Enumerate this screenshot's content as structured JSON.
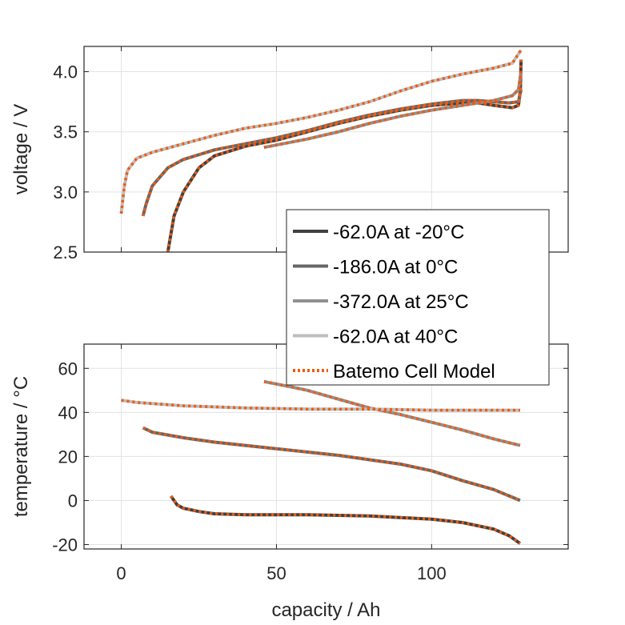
{
  "chart_data": [
    {
      "type": "line",
      "ylabel": "voltage / V",
      "xlabel": "",
      "xlim": [
        -12,
        144
      ],
      "ylim": [
        2.5,
        4.21
      ],
      "yticks": [
        2.5,
        3.0,
        3.5,
        4.0
      ],
      "ytick_labels": [
        "2.5",
        "3.0",
        "3.5",
        "4.0"
      ],
      "grid": true,
      "series": [
        {
          "name": "-62.0A at -20°C",
          "color": "#404040",
          "x": [
            15,
            17,
            20,
            25,
            30,
            40,
            50,
            60,
            70,
            80,
            90,
            100,
            110,
            115,
            120,
            126,
            128,
            128.6,
            128.8
          ],
          "y": [
            2.5,
            2.8,
            3.0,
            3.2,
            3.3,
            3.38,
            3.43,
            3.5,
            3.57,
            3.63,
            3.68,
            3.72,
            3.74,
            3.74,
            3.72,
            3.7,
            3.72,
            3.85,
            4.1
          ]
        },
        {
          "name": "-186.0A at 0°C",
          "color": "#666666",
          "x": [
            7,
            8,
            10,
            15,
            20,
            30,
            40,
            50,
            60,
            70,
            80,
            90,
            100,
            110,
            115,
            120,
            125,
            128,
            128.8
          ],
          "y": [
            2.8,
            2.9,
            3.05,
            3.2,
            3.27,
            3.35,
            3.4,
            3.45,
            3.51,
            3.58,
            3.64,
            3.69,
            3.73,
            3.76,
            3.76,
            3.75,
            3.74,
            3.75,
            3.85
          ]
        },
        {
          "name": "-372.0A at 25°C",
          "color": "#909090",
          "x": [
            46,
            60,
            70,
            80,
            90,
            100,
            110,
            120,
            126,
            128,
            128.8
          ],
          "y": [
            3.37,
            3.44,
            3.5,
            3.57,
            3.63,
            3.68,
            3.72,
            3.76,
            3.8,
            3.85,
            4.0
          ]
        },
        {
          "name": "-62.0A at 40°C",
          "color": "#bdbdbd",
          "x": [
            0,
            1,
            2,
            5,
            10,
            20,
            30,
            40,
            50,
            60,
            70,
            80,
            90,
            100,
            110,
            120,
            126,
            128.8
          ],
          "y": [
            2.82,
            3.05,
            3.18,
            3.28,
            3.33,
            3.4,
            3.47,
            3.53,
            3.57,
            3.62,
            3.68,
            3.75,
            3.84,
            3.92,
            3.98,
            4.03,
            4.07,
            4.18
          ]
        }
      ]
    },
    {
      "type": "line",
      "ylabel": "temperature / °C",
      "xlabel": "capacity / Ah",
      "xlim": [
        -12,
        144
      ],
      "ylim": [
        -22,
        71
      ],
      "xticks": [
        0,
        50,
        100
      ],
      "xtick_labels": [
        "0",
        "50",
        "100"
      ],
      "yticks": [
        -20,
        0,
        20,
        40,
        60
      ],
      "ytick_labels": [
        "-20",
        "0",
        "20",
        "40",
        "60"
      ],
      "grid": true,
      "series": [
        {
          "name": "-62.0A at -20°C",
          "color": "#404040",
          "x": [
            16,
            18,
            20,
            25,
            30,
            40,
            60,
            80,
            100,
            110,
            120,
            125,
            128.5
          ],
          "y": [
            2,
            -2,
            -3.5,
            -5,
            -6,
            -6.5,
            -6.5,
            -7,
            -8.5,
            -10,
            -13,
            -16,
            -19.5
          ]
        },
        {
          "name": "-186.0A at 0°C",
          "color": "#666666",
          "x": [
            7,
            10,
            20,
            30,
            40,
            50,
            60,
            70,
            80,
            90,
            100,
            110,
            120,
            128.5
          ],
          "y": [
            33,
            31,
            28.5,
            26.5,
            25,
            23.5,
            22,
            20.5,
            18.5,
            16.5,
            13.5,
            9,
            5,
            0
          ]
        },
        {
          "name": "-372.0A at 25°C",
          "color": "#909090",
          "x": [
            46,
            55,
            60,
            70,
            80,
            90,
            100,
            110,
            120,
            128.5
          ],
          "y": [
            54,
            51.5,
            50,
            46,
            42,
            39,
            35.5,
            32,
            28,
            25
          ]
        },
        {
          "name": "-62.0A at 40°C",
          "color": "#bdbdbd",
          "x": [
            0,
            5,
            20,
            40,
            60,
            80,
            100,
            128.5
          ],
          "y": [
            45.5,
            44.5,
            43,
            42,
            41.5,
            41.5,
            41,
            41
          ]
        }
      ]
    }
  ],
  "model_color": "#f05a10",
  "legend": {
    "placement": "center-right",
    "entries": [
      "-62.0A at -20°C",
      "-186.0A at 0°C",
      "-372.0A at 25°C",
      "-62.0A at 40°C",
      "Batemo Cell Model"
    ]
  }
}
